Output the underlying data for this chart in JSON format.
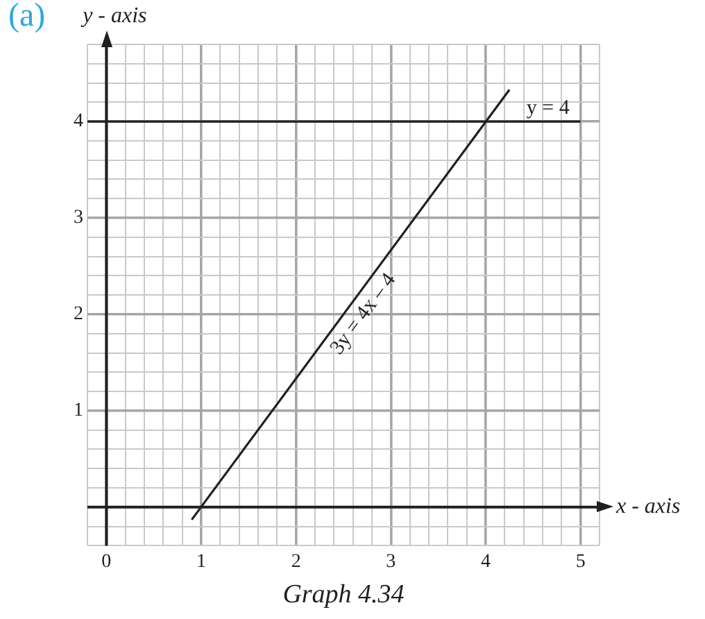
{
  "chart_data": {
    "type": "line",
    "title": "(a)",
    "xlabel": "x - axis",
    "ylabel": "y - axis",
    "annotations": [
      "Graph 4.34"
    ],
    "xlim": [
      -0.2,
      5.2
    ],
    "ylim": [
      -0.4,
      4.8
    ],
    "xticks": [
      {
        "value": -0.2,
        "label": null
      },
      {
        "value": 0,
        "label": "0"
      },
      {
        "value": 0.2,
        "label": null
      },
      {
        "value": 0.4,
        "label": null
      },
      {
        "value": 0.6,
        "label": null
      },
      {
        "value": 0.8,
        "label": null
      },
      1,
      {
        "value": 1.2,
        "label": null
      },
      {
        "value": 1.4,
        "label": null
      },
      {
        "value": 1.6,
        "label": null
      },
      {
        "value": 1.8,
        "label": null
      },
      2,
      {
        "value": 2.2,
        "label": null
      },
      {
        "value": 2.4,
        "label": null
      },
      {
        "value": 2.6,
        "label": null
      },
      {
        "value": 2.8,
        "label": null
      },
      3,
      {
        "value": 3.2,
        "label": null
      },
      {
        "value": 3.4,
        "label": null
      },
      {
        "value": 3.6,
        "label": null
      },
      {
        "value": 3.8,
        "label": null
      },
      4,
      {
        "value": 4.2,
        "label": null
      },
      {
        "value": 4.4,
        "label": null
      },
      {
        "value": 4.6,
        "label": null
      },
      {
        "value": 4.8,
        "label": null
      },
      5,
      {
        "value": 5.2,
        "label": null
      }
    ],
    "yticks": [
      {
        "value": -0.4,
        "label": null
      },
      {
        "value": -0.2,
        "label": null
      },
      {
        "value": 0,
        "label": null
      },
      {
        "value": 0.2,
        "label": null
      },
      {
        "value": 0.4,
        "label": null
      },
      {
        "value": 0.6,
        "label": null
      },
      {
        "value": 0.8,
        "label": null
      },
      1,
      {
        "value": 1.2,
        "label": null
      },
      {
        "value": 1.4,
        "label": null
      },
      {
        "value": 1.6,
        "label": null
      },
      {
        "value": 1.8,
        "label": null
      },
      2,
      {
        "value": 2.2,
        "label": null
      },
      {
        "value": 2.4,
        "label": null
      },
      {
        "value": 2.6,
        "label": null
      },
      {
        "value": 2.8,
        "label": null
      },
      3,
      {
        "value": 3.2,
        "label": null
      },
      {
        "value": 3.4,
        "label": null
      },
      {
        "value": 3.6,
        "label": null
      },
      {
        "value": 3.8,
        "label": null
      },
      4,
      {
        "value": 4.2,
        "label": null
      },
      {
        "value": 4.4,
        "label": null
      },
      {
        "value": 4.6,
        "label": null
      },
      {
        "value": 4.8,
        "label": null
      }
    ],
    "grid": true,
    "legend": false,
    "marker": "none",
    "line_style": "solid",
    "series": [
      {
        "name": "y = 4",
        "color": "#231f20",
        "x": [
          -0.2,
          5
        ],
        "values": [
          4,
          4
        ]
      },
      {
        "name": "3y = 4x – 4",
        "color": "#231f20",
        "x": [
          0.9,
          4.25
        ],
        "values": [
          -0.13,
          4.33
        ]
      }
    ]
  }
}
